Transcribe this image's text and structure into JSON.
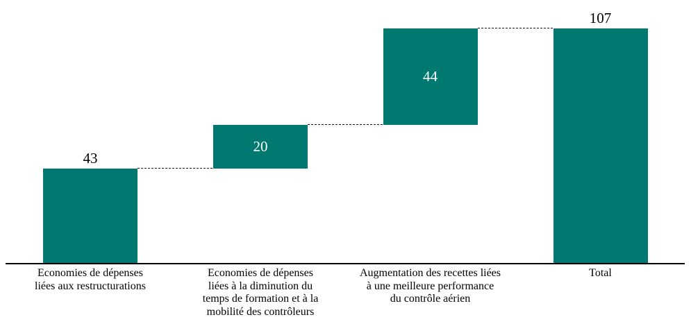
{
  "chart_data": {
    "type": "bar",
    "subtype": "waterfall",
    "title": "",
    "xlabel": "",
    "ylabel": "",
    "ylim": [
      0,
      107
    ],
    "grid": false,
    "legend": false,
    "axis_line_color": "#000000",
    "bar_color": "#007a70",
    "connector_style": "dotted",
    "connector_color": "#111111",
    "categories": [
      "Economies de dépenses liées aux restructurations",
      "Economies de dépenses liées à la diminution du temps de formation et à la mobilité des contrôleurs",
      "Augmentation des recettes liées à une meilleure performance du contrôle aérien",
      "Total"
    ],
    "values": [
      43,
      20,
      44,
      107
    ],
    "bars": [
      {
        "category_lines": [
          "Economies de dépenses",
          "liées aux restructurations"
        ],
        "value": 43,
        "start": 0,
        "end": 43,
        "value_label": "43",
        "value_label_position": "above",
        "value_label_color": "#000000"
      },
      {
        "category_lines": [
          "Economies de dépenses",
          "liées à la diminution du",
          "temps de formation et à la",
          "mobilité des contrôleurs"
        ],
        "value": 20,
        "start": 43,
        "end": 63,
        "value_label": "20",
        "value_label_position": "inside",
        "value_label_color": "#ffffff"
      },
      {
        "category_lines": [
          "Augmentation des recettes liées",
          "à une meilleure performance",
          "du contrôle aérien"
        ],
        "value": 44,
        "start": 63,
        "end": 107,
        "value_label": "44",
        "value_label_position": "inside",
        "value_label_color": "#ffffff"
      },
      {
        "category_lines": [
          "Total"
        ],
        "value": 107,
        "start": 0,
        "end": 107,
        "value_label": "107",
        "value_label_position": "above",
        "value_label_color": "#000000"
      }
    ],
    "connectors": [
      {
        "from_bar": 0,
        "to_bar": 1,
        "level": 43
      },
      {
        "from_bar": 1,
        "to_bar": 2,
        "level": 63
      },
      {
        "from_bar": 2,
        "to_bar": 3,
        "level": 107
      }
    ]
  }
}
